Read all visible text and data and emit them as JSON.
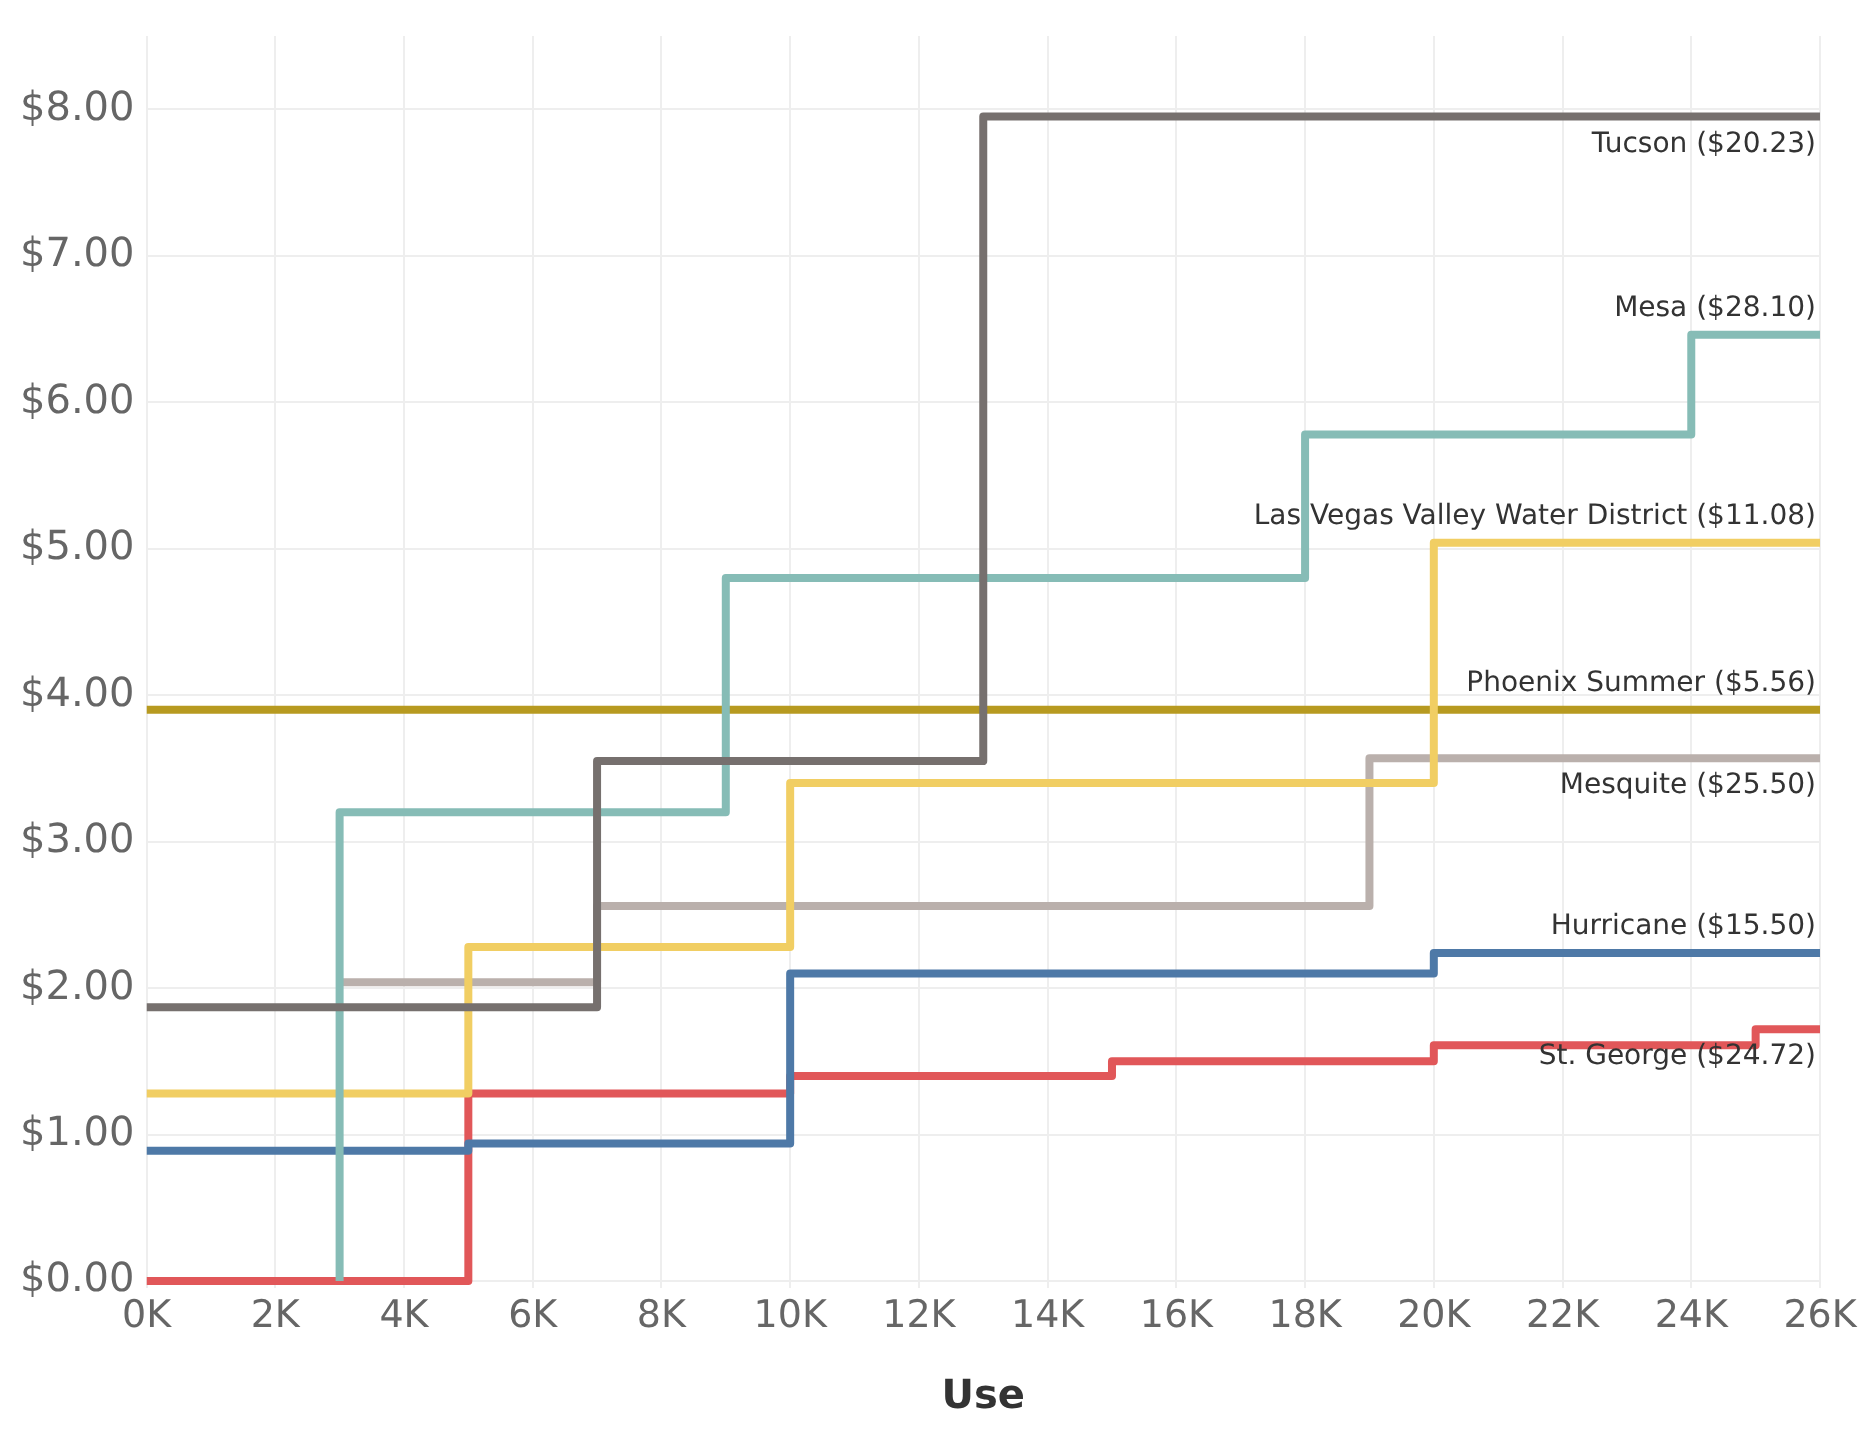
{
  "chart_data": {
    "type": "step",
    "xlabel": "Use",
    "xlim": [
      0,
      26000
    ],
    "ylim": [
      -0.05,
      8.5
    ],
    "xticks": [
      {
        "value": 0,
        "label": "0K"
      },
      {
        "value": 2000,
        "label": "2K"
      },
      {
        "value": 4000,
        "label": "4K"
      },
      {
        "value": 6000,
        "label": "6K"
      },
      {
        "value": 8000,
        "label": "8K"
      },
      {
        "value": 10000,
        "label": "10K"
      },
      {
        "value": 12000,
        "label": "12K"
      },
      {
        "value": 14000,
        "label": "14K"
      },
      {
        "value": 16000,
        "label": "16K"
      },
      {
        "value": 18000,
        "label": "18K"
      },
      {
        "value": 20000,
        "label": "20K"
      },
      {
        "value": 22000,
        "label": "22K"
      },
      {
        "value": 24000,
        "label": "24K"
      },
      {
        "value": 26000,
        "label": "26K"
      }
    ],
    "yticks": [
      {
        "value": 0,
        "label": "$0.00"
      },
      {
        "value": 1,
        "label": "$1.00"
      },
      {
        "value": 2,
        "label": "$2.00"
      },
      {
        "value": 3,
        "label": "$3.00"
      },
      {
        "value": 4,
        "label": "$4.00"
      },
      {
        "value": 5,
        "label": "$5.00"
      },
      {
        "value": 6,
        "label": "$6.00"
      },
      {
        "value": 7,
        "label": "$7.00"
      },
      {
        "value": 8,
        "label": "$8.00"
      }
    ],
    "grid": true,
    "legend": false,
    "marker": "none",
    "line_style": "solid",
    "series": [
      {
        "name": "Tucson ($20.23)",
        "color": "#76706e",
        "x": [
          0,
          7000,
          13000,
          26000
        ],
        "values": [
          1.87,
          3.55,
          7.95,
          7.95
        ]
      },
      {
        "name": "Mesa ($28.10)",
        "color": "#86bcb6",
        "x": [
          3000,
          3000,
          9000,
          18000,
          24000,
          26000
        ],
        "values": [
          0,
          3.2,
          4.8,
          5.78,
          6.46,
          6.46
        ]
      },
      {
        "name": "Las Vegas Valley Water District ($11.08)",
        "color": "#f1ce63",
        "x": [
          0,
          5000,
          10000,
          20000,
          26000
        ],
        "values": [
          1.28,
          2.28,
          3.4,
          5.04,
          5.04
        ]
      },
      {
        "name": "Phoenix Summer ($5.56)",
        "color": "#b79a20",
        "x": [
          0,
          26000
        ],
        "values": [
          3.9,
          3.9
        ]
      },
      {
        "name": "Mesquite ($25.50)",
        "color": "#bab0ac",
        "x": [
          3000,
          7000,
          19000,
          26000
        ],
        "values": [
          2.04,
          2.56,
          3.57,
          3.57
        ]
      },
      {
        "name": "Hurricane ($15.50)",
        "color": "#4e79a7",
        "x": [
          0,
          5000,
          10000,
          20000,
          26000
        ],
        "values": [
          0.89,
          0.94,
          2.1,
          2.24,
          2.24
        ]
      },
      {
        "name": "St. George ($24.72)",
        "color": "#e15759",
        "x": [
          0,
          5000,
          10000,
          15000,
          20000,
          25000,
          26000
        ],
        "values": [
          0,
          1.28,
          1.4,
          1.5,
          1.61,
          1.72,
          1.72
        ]
      }
    ]
  }
}
